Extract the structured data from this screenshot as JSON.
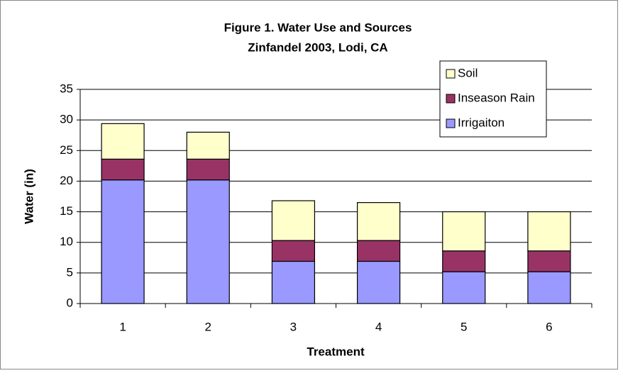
{
  "chart_data": {
    "type": "stacked_bar",
    "title": "Figure 1. Water Use and Sources",
    "subtitle": "Zinfandel 2003, Lodi, CA",
    "x_label": "Treatment",
    "y_label": "Water (in)",
    "categories": [
      "1",
      "2",
      "3",
      "4",
      "5",
      "6"
    ],
    "series": [
      {
        "name": "Irrigaiton",
        "color": "#9999ff",
        "values": [
          20.2,
          20.2,
          6.9,
          6.9,
          5.2,
          5.2
        ]
      },
      {
        "name": "Inseason Rain",
        "color": "#993366",
        "values": [
          3.4,
          3.4,
          3.4,
          3.4,
          3.4,
          3.4
        ]
      },
      {
        "name": "Soil",
        "color": "#ffffcc",
        "values": [
          5.8,
          4.4,
          6.5,
          6.2,
          6.4,
          6.4
        ]
      }
    ],
    "ylim": [
      0,
      35
    ],
    "yticks": [
      0,
      5,
      10,
      15,
      20,
      25,
      30,
      35
    ],
    "grid": true,
    "legend": "top-right"
  }
}
